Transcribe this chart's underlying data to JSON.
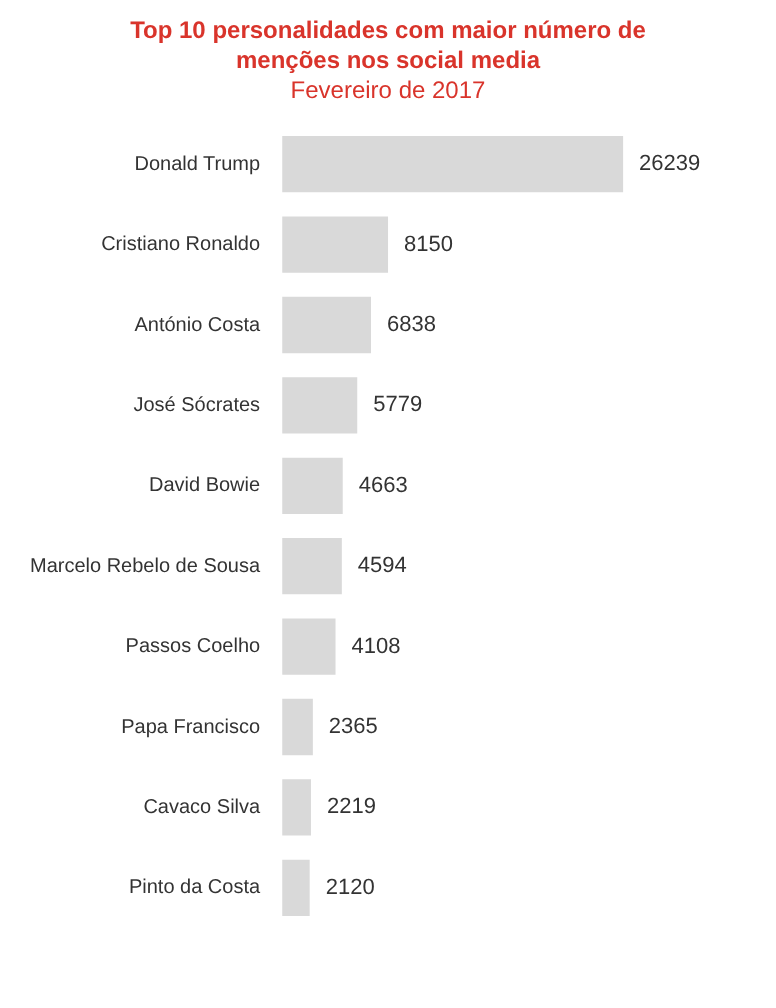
{
  "chart_data": {
    "type": "bar",
    "orientation": "horizontal",
    "title": "Top 10 personalidades com maior número de menções nos social media",
    "subtitle": "Fevereiro de 2017",
    "categories": [
      "Donald Trump",
      "Cristiano Ronaldo",
      "António Costa",
      "José Sócrates",
      "David Bowie",
      "Marcelo Rebelo de Sousa",
      "Passos Coelho",
      "Papa Francisco",
      "Cavaco Silva",
      "Pinto da Costa"
    ],
    "values": [
      26239,
      8150,
      6838,
      5779,
      4663,
      4594,
      4108,
      2365,
      2219,
      2120
    ],
    "color": "#d9d9d9",
    "data_labels": true,
    "legend": false
  }
}
